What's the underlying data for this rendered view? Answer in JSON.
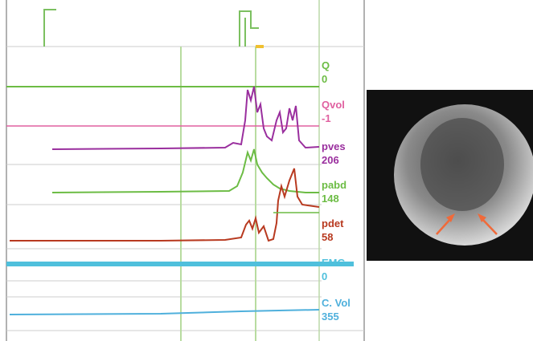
{
  "channels": [
    {
      "name": "Q",
      "value": "0"
    },
    {
      "name": "Qvol",
      "value": "-1"
    },
    {
      "name": "pves",
      "value": "206"
    },
    {
      "name": "pabd",
      "value": "148"
    },
    {
      "name": "pdet",
      "value": "58"
    },
    {
      "name": "EMG",
      "value": "0"
    },
    {
      "name": "C. Vol",
      "value": "355"
    }
  ]
}
